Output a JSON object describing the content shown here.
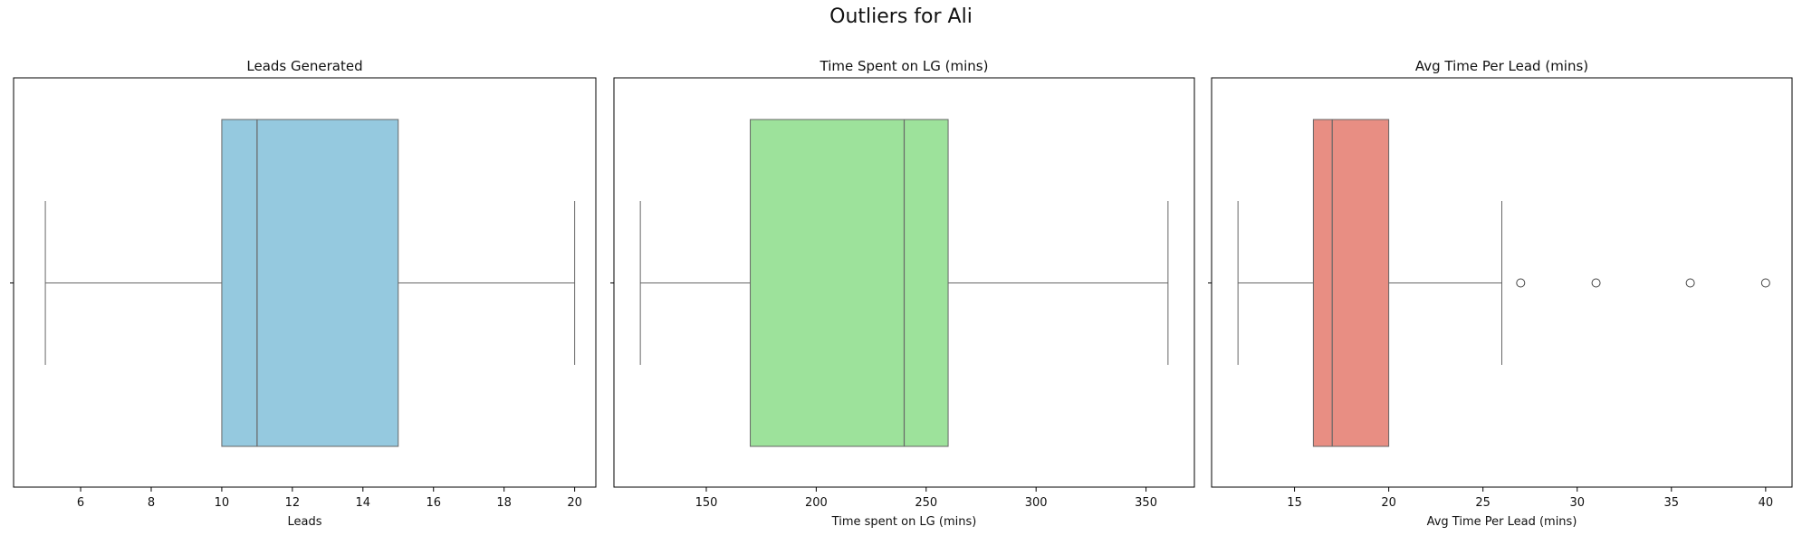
{
  "suptitle": "Outliers for Ali",
  "chart_data": [
    {
      "type": "boxplot",
      "title": "Leads Generated",
      "xlabel": "Leads",
      "xlim": [
        4.1,
        20.6
      ],
      "xticks": [
        6,
        8,
        10,
        12,
        14,
        16,
        18,
        20
      ],
      "color": "#95c9df",
      "stats": {
        "whisker_low": 5,
        "q1": 10,
        "median": 11,
        "q3": 15,
        "whisker_high": 20
      },
      "outliers": []
    },
    {
      "type": "boxplot",
      "title": "Time Spent on LG (mins)",
      "xlabel": "Time spent on LG (mins)",
      "xlim": [
        108,
        372
      ],
      "xticks": [
        150,
        200,
        250,
        300,
        350
      ],
      "color": "#9de29b",
      "stats": {
        "whisker_low": 120,
        "q1": 170,
        "median": 240,
        "q3": 260,
        "whisker_high": 360
      },
      "outliers": []
    },
    {
      "type": "boxplot",
      "title": "Avg Time Per Lead (mins)",
      "xlabel": "Avg Time Per Lead (mins)",
      "xlim": [
        10.6,
        41.4
      ],
      "xticks": [
        15,
        20,
        25,
        30,
        35,
        40
      ],
      "color": "#e88e83",
      "stats": {
        "whisker_low": 12,
        "q1": 16,
        "median": 17,
        "q3": 20,
        "whisker_high": 26
      },
      "outliers": [
        27,
        31,
        36,
        40
      ]
    }
  ]
}
